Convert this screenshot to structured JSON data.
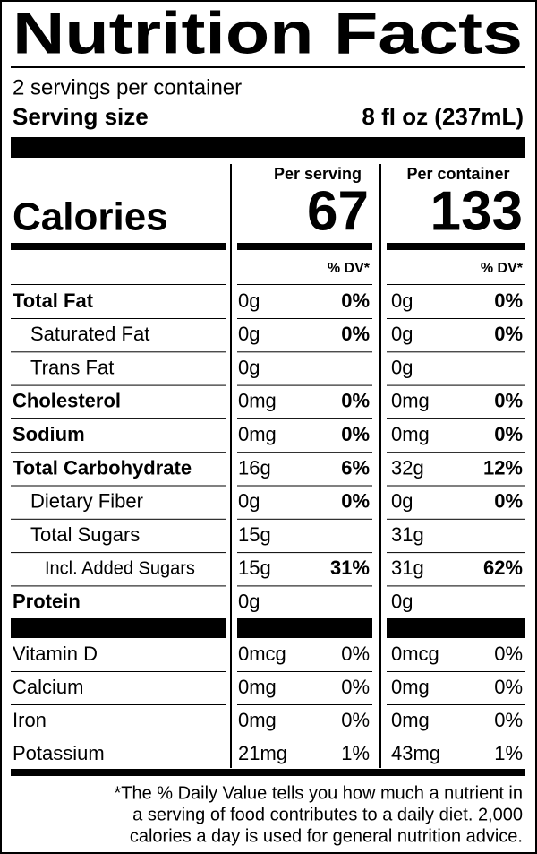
{
  "title": "Nutrition Facts",
  "servings": "2 servings per container",
  "serving_size": {
    "label": "Serving size",
    "value": "8 fl oz (237mL)"
  },
  "columns": [
    "Per serving",
    "Per container"
  ],
  "calories": {
    "label": "Calories",
    "values": [
      "67",
      "133"
    ]
  },
  "dv_header": [
    "% DV*",
    "% DV*"
  ],
  "nutrients": [
    {
      "name": "Total Fat",
      "bold": true,
      "indent": 0,
      "serving": "0g",
      "serving_dv": "0%",
      "container": "0g",
      "container_dv": "0%"
    },
    {
      "name": "Saturated Fat",
      "bold": false,
      "indent": 1,
      "serving": "0g",
      "serving_dv": "0%",
      "container": "0g",
      "container_dv": "0%"
    },
    {
      "name": "Trans Fat",
      "bold": false,
      "indent": 1,
      "serving": "0g",
      "container": "0g"
    },
    {
      "name": "Cholesterol",
      "bold": true,
      "indent": 0,
      "serving": "0mg",
      "serving_dv": "0%",
      "container": "0mg",
      "container_dv": "0%"
    },
    {
      "name": "Sodium",
      "bold": true,
      "indent": 0,
      "serving": "0mg",
      "serving_dv": "0%",
      "container": "0mg",
      "container_dv": "0%"
    },
    {
      "name": "Total Carbohydrate",
      "bold": true,
      "indent": 0,
      "serving": "16g",
      "serving_dv": "6%",
      "container": "32g",
      "container_dv": "12%"
    },
    {
      "name": "Dietary Fiber",
      "bold": false,
      "indent": 1,
      "serving": "0g",
      "serving_dv": "0%",
      "container": "0g",
      "container_dv": "0%"
    },
    {
      "name": "Total Sugars",
      "bold": false,
      "indent": 1,
      "serving": "15g",
      "container": "31g"
    },
    {
      "name": "Incl. Added Sugars",
      "bold": false,
      "indent": 2,
      "serving": "15g",
      "serving_dv": "31%",
      "container": "31g",
      "container_dv": "62%"
    },
    {
      "name": "Protein",
      "bold": true,
      "indent": 0,
      "serving": "0g",
      "container": "0g"
    }
  ],
  "vitamins": [
    {
      "name": "Vitamin D",
      "serving": "0mcg",
      "serving_dv": "0%",
      "container": "0mcg",
      "container_dv": "0%"
    },
    {
      "name": "Calcium",
      "serving": "0mg",
      "serving_dv": "0%",
      "container": "0mg",
      "container_dv": "0%"
    },
    {
      "name": "Iron",
      "serving": "0mg",
      "serving_dv": "0%",
      "container": "0mg",
      "container_dv": "0%"
    },
    {
      "name": "Potassium",
      "serving": "21mg",
      "serving_dv": "1%",
      "container": "43mg",
      "container_dv": "1%"
    }
  ],
  "footnote": [
    "*The % Daily Value tells you how much a nutrient in",
    "a serving of food contributes to a daily diet. 2,000",
    "calories a day is used for general nutrition advice."
  ]
}
